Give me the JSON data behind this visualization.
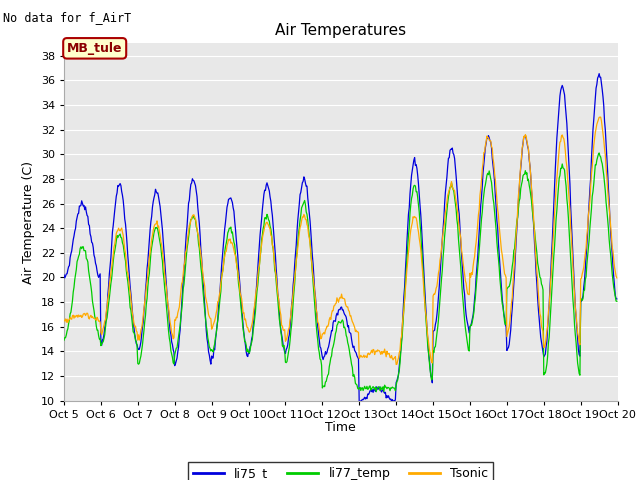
{
  "title": "Air Temperatures",
  "ylabel": "Air Temperature (C)",
  "xlabel": "Time",
  "no_data_text": "No data for f_AirT",
  "annotation_text": "MB_tule",
  "ylim": [
    10,
    39
  ],
  "yticks": [
    10,
    12,
    14,
    16,
    18,
    20,
    22,
    24,
    26,
    28,
    30,
    32,
    34,
    36,
    38
  ],
  "colors": {
    "li75_t": "#0000dd",
    "li77_temp": "#00cc00",
    "Tsonic": "#ffaa00"
  },
  "legend_labels": [
    "li75_t",
    "li77_temp",
    "Tsonic"
  ],
  "xtick_labels": [
    "Oct 5",
    "Oct 6",
    "Oct 7",
    "Oct 8",
    "Oct 9",
    "Oct 10",
    "Oct 11",
    "Oct 12",
    "Oct 13",
    "Oct 14",
    "Oct 15",
    "Oct 16",
    "Oct 17",
    "Oct 18",
    "Oct 19",
    "Oct 20"
  ],
  "plot_bg_color": "#e8e8e8",
  "fig_bg_color": "#ffffff",
  "grid_color": "#ffffff",
  "n_days": 15,
  "pts_per_day": 48,
  "day_peaks_li75": [
    26.0,
    27.5,
    27.0,
    28.0,
    26.5,
    27.5,
    28.0,
    17.5,
    11.0,
    29.5,
    30.5,
    31.5,
    31.5,
    35.5,
    36.5
  ],
  "day_troughs_li75": [
    20.0,
    14.5,
    14.0,
    13.0,
    13.5,
    14.0,
    14.0,
    13.5,
    10.0,
    11.5,
    15.5,
    16.0,
    14.0,
    13.5,
    18.0
  ],
  "day_peaks_li77": [
    22.5,
    23.5,
    24.0,
    25.0,
    24.0,
    25.0,
    26.0,
    16.5,
    11.0,
    27.5,
    27.5,
    28.5,
    28.5,
    29.0,
    30.0
  ],
  "day_troughs_li77": [
    15.0,
    14.5,
    13.0,
    14.0,
    14.0,
    14.0,
    13.0,
    11.0,
    11.0,
    11.5,
    14.0,
    16.0,
    19.0,
    12.0,
    18.0
  ],
  "day_peaks_sonic": [
    17.0,
    24.0,
    24.5,
    25.0,
    23.0,
    24.5,
    25.0,
    18.5,
    14.0,
    25.0,
    27.5,
    31.5,
    31.5,
    31.5,
    33.0
  ],
  "day_troughs_sonic": [
    16.5,
    15.5,
    15.0,
    16.5,
    16.0,
    15.5,
    15.0,
    15.5,
    13.5,
    13.0,
    18.5,
    20.0,
    15.5,
    14.5,
    20.0
  ]
}
